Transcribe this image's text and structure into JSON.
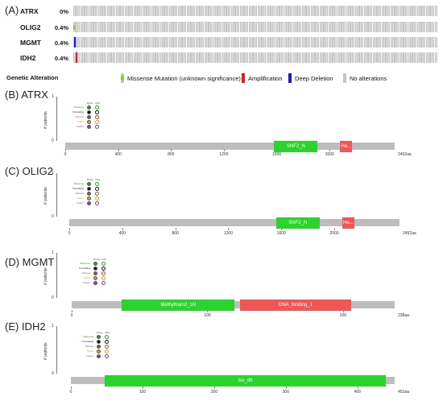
{
  "panel_a": {
    "label": "(A)",
    "genes": [
      {
        "name": "ATRX",
        "pct": "0%",
        "alteration": "none",
        "mark_color": ""
      },
      {
        "name": "OLIG2",
        "pct": "0.4%",
        "alteration": "missense",
        "mark_color": "#7fd13b"
      },
      {
        "name": "MGMT",
        "pct": "0.4%",
        "alteration": "deep_deletion",
        "mark_color": "#1a1ad6"
      },
      {
        "name": "IDH2",
        "pct": "0.4%",
        "alteration": "amplification",
        "mark_color": "#e01e1e"
      }
    ],
    "legend_title": "Genetic Alteration",
    "legend": [
      {
        "label": "Missense Mutation (unknown significance)",
        "color": "#7fd13b",
        "inner": "#c4c4c4"
      },
      {
        "label": "Amplification",
        "color": "#e01e1e",
        "inner": ""
      },
      {
        "label": "Deep Deletion",
        "color": "#1a1ad6",
        "inner": ""
      },
      {
        "label": "No alterations",
        "color": "#c4c4c4",
        "inner": ""
      }
    ]
  },
  "mini_legend": {
    "col1": "Driver",
    "col2": "VUS",
    "rows": [
      {
        "label": "Missense",
        "color": "#2e9e2e"
      },
      {
        "label": "Truncating",
        "color": "#111111"
      },
      {
        "label": "Inframe",
        "color": "#a0522d"
      },
      {
        "label": "Splice",
        "color": "#e8a000"
      },
      {
        "label": "Fusion",
        "color": "#9b30c8"
      }
    ]
  },
  "lollipops": [
    {
      "label": "(B) ATRX",
      "ylabel": "# patients",
      "yticks": [
        "1",
        "0"
      ],
      "length": 2492,
      "length_label": "2492aa",
      "ticks": [
        {
          "v": 0,
          "t": "0"
        },
        {
          "v": 400,
          "t": "400"
        },
        {
          "v": 800,
          "t": "800"
        },
        {
          "v": 1200,
          "t": "1200"
        },
        {
          "v": 1600,
          "t": "1600"
        },
        {
          "v": 2000,
          "t": "2000"
        }
      ],
      "domains": [
        {
          "name": "SNF2_N",
          "start": 1580,
          "end": 1910,
          "color": "#2ad42a"
        },
        {
          "name": "He...",
          "start": 2080,
          "end": 2170,
          "color": "#f05656"
        }
      ]
    },
    {
      "label": "(C) OLIG2",
      "ylabel": "# patients",
      "yticks": [
        "1",
        "0"
      ],
      "length": 2492,
      "length_label": "2492aa",
      "ticks": [
        {
          "v": 0,
          "t": "0"
        },
        {
          "v": 400,
          "t": "400"
        },
        {
          "v": 800,
          "t": "800"
        },
        {
          "v": 1200,
          "t": "1200"
        },
        {
          "v": 1600,
          "t": "1600"
        },
        {
          "v": 2000,
          "t": "2000"
        }
      ],
      "domains": [
        {
          "name": "SNF2_N",
          "start": 1560,
          "end": 1890,
          "color": "#2ad42a"
        },
        {
          "name": "He...",
          "start": 2060,
          "end": 2150,
          "color": "#f05656"
        }
      ]
    },
    {
      "label": "(D) MGMT",
      "ylabel": "# patients",
      "yticks": [
        "1",
        "0"
      ],
      "length": 238,
      "length_label": "238aa",
      "ticks": [
        {
          "v": 0,
          "t": "0"
        },
        {
          "v": 100,
          "t": "100"
        },
        {
          "v": 200,
          "t": "200"
        }
      ],
      "domains": [
        {
          "name": "Methyltransf_1N",
          "start": 37,
          "end": 120,
          "color": "#2ad42a"
        },
        {
          "name": "DNA_binding_1",
          "start": 124,
          "end": 206,
          "color": "#f05656"
        }
      ]
    },
    {
      "label": "(E) IDH2",
      "ylabel": "# patients",
      "yticks": [
        "1",
        "0"
      ],
      "length": 452,
      "length_label": "452aa",
      "ticks": [
        {
          "v": 0,
          "t": "0"
        },
        {
          "v": 100,
          "t": "100"
        },
        {
          "v": 200,
          "t": "200"
        },
        {
          "v": 300,
          "t": "300"
        },
        {
          "v": 400,
          "t": "400"
        }
      ],
      "domains": [
        {
          "name": "Iso_dh",
          "start": 47,
          "end": 440,
          "color": "#2ad42a"
        }
      ]
    }
  ]
}
